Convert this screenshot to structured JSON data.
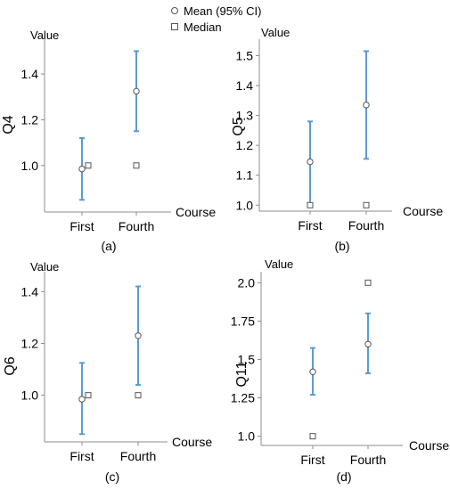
{
  "legend": {
    "items": [
      {
        "marker": "circle",
        "label": "Mean (95% CI)"
      },
      {
        "marker": "square",
        "label": "Median"
      }
    ]
  },
  "colors": {
    "ci_bar": "#5B9BD5",
    "axis": "#8C8C8C",
    "marker_stroke": "#555555",
    "marker_fill": "#FFFFFF"
  },
  "chart_data": [
    {
      "type": "scatter",
      "panel_label": "(a)",
      "ylabel": "Q4",
      "y_axis_title": "Value",
      "xlabel": "Course",
      "categories": [
        "First",
        "Fourth"
      ],
      "yticks": [
        "1.0",
        "1.2",
        "1.4"
      ],
      "ylim": [
        0.82,
        1.56
      ],
      "series": [
        {
          "name": "Mean (95% CI)",
          "values": [
            0.985,
            1.325
          ],
          "ci_low": [
            0.85,
            1.15
          ],
          "ci_high": [
            1.12,
            1.5
          ]
        },
        {
          "name": "Median",
          "values": [
            1.0,
            1.0
          ]
        }
      ]
    },
    {
      "type": "scatter",
      "panel_label": "(b)",
      "ylabel": "Q5",
      "y_axis_title": "Value",
      "xlabel": "Course",
      "categories": [
        "First",
        "Fourth"
      ],
      "yticks": [
        "1.0",
        "1.1",
        "1.2",
        "1.3",
        "1.4",
        "1.5"
      ],
      "ylim": [
        0.98,
        1.555
      ],
      "series": [
        {
          "name": "Mean (95% CI)",
          "values": [
            1.145,
            1.335
          ],
          "ci_low": [
            1.005,
            1.155
          ],
          "ci_high": [
            1.28,
            1.515
          ]
        },
        {
          "name": "Median",
          "values": [
            1.0,
            1.0
          ]
        }
      ]
    },
    {
      "type": "scatter",
      "panel_label": "(c)",
      "ylabel": "Q6",
      "y_axis_title": "Value",
      "xlabel": "Course",
      "categories": [
        "First",
        "Fourth"
      ],
      "yticks": [
        "1.0",
        "1.2",
        "1.4"
      ],
      "ytick_values": [
        1.0,
        1.2,
        1.4
      ],
      "ylim": [
        0.82,
        1.47
      ],
      "series": [
        {
          "name": "Mean (95% CI)",
          "values": [
            0.985,
            1.23
          ],
          "ci_low": [
            0.85,
            1.04
          ],
          "ci_high": [
            1.125,
            1.42
          ]
        },
        {
          "name": "Median",
          "values": [
            1.0,
            1.0
          ]
        }
      ]
    },
    {
      "type": "scatter",
      "panel_label": "(d)",
      "ylabel": "Q11",
      "y_axis_title": "Value",
      "xlabel": "Course",
      "categories": [
        "First",
        "Fourth"
      ],
      "yticks": [
        "1.0",
        "1.25",
        "1.5",
        "1.75",
        "2.0"
      ],
      "ylim": [
        0.94,
        2.06
      ],
      "series": [
        {
          "name": "Mean (95% CI)",
          "values": [
            1.42,
            1.6
          ],
          "ci_low": [
            1.27,
            1.41
          ],
          "ci_high": [
            1.575,
            1.8
          ]
        },
        {
          "name": "Median",
          "values": [
            1.0,
            2.0
          ]
        }
      ]
    }
  ]
}
